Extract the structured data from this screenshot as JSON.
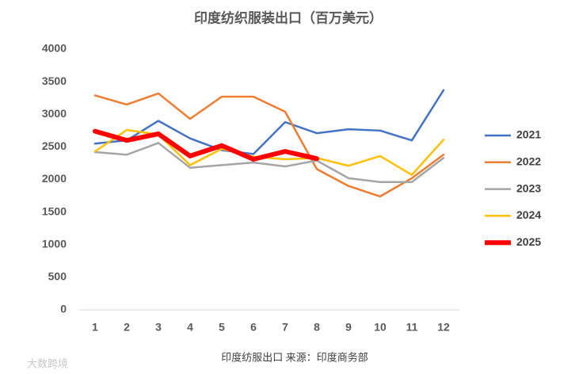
{
  "chart_data": {
    "type": "line",
    "title": "印度纺织服装出口（百万美元）",
    "footer": "印度纺服出口 来源：印度商务部",
    "watermark": "大数跨境",
    "categories": [
      "1",
      "2",
      "3",
      "4",
      "5",
      "6",
      "7",
      "8",
      "9",
      "10",
      "11",
      "12"
    ],
    "ylim": [
      0,
      4000
    ],
    "yticks": [
      0,
      500,
      1000,
      1500,
      2000,
      2500,
      3000,
      3500,
      4000
    ],
    "grid": false,
    "legend": "right",
    "series": [
      {
        "name": "2021",
        "color": "#4472c4",
        "values": [
          2550,
          2600,
          2900,
          2630,
          2450,
          2390,
          2880,
          2710,
          2770,
          2750,
          2600,
          3370
        ]
      },
      {
        "name": "2022",
        "color": "#ed7d31",
        "values": [
          3290,
          3150,
          3320,
          2930,
          3270,
          3270,
          3040,
          2160,
          1900,
          1740,
          2020,
          2380
        ]
      },
      {
        "name": "2023",
        "color": "#a5a5a5",
        "values": [
          2420,
          2380,
          2560,
          2180,
          2220,
          2260,
          2200,
          2290,
          2020,
          1960,
          1960,
          2330
        ]
      },
      {
        "name": "2024",
        "color": "#ffc000",
        "values": [
          2430,
          2760,
          2690,
          2220,
          2470,
          2350,
          2310,
          2330,
          2210,
          2360,
          2070,
          2610
        ]
      },
      {
        "name": "2025",
        "color": "#ff0000",
        "values": [
          2740,
          2600,
          2700,
          2360,
          2520,
          2310,
          2430,
          2320,
          null,
          null,
          null,
          null
        ]
      }
    ]
  }
}
